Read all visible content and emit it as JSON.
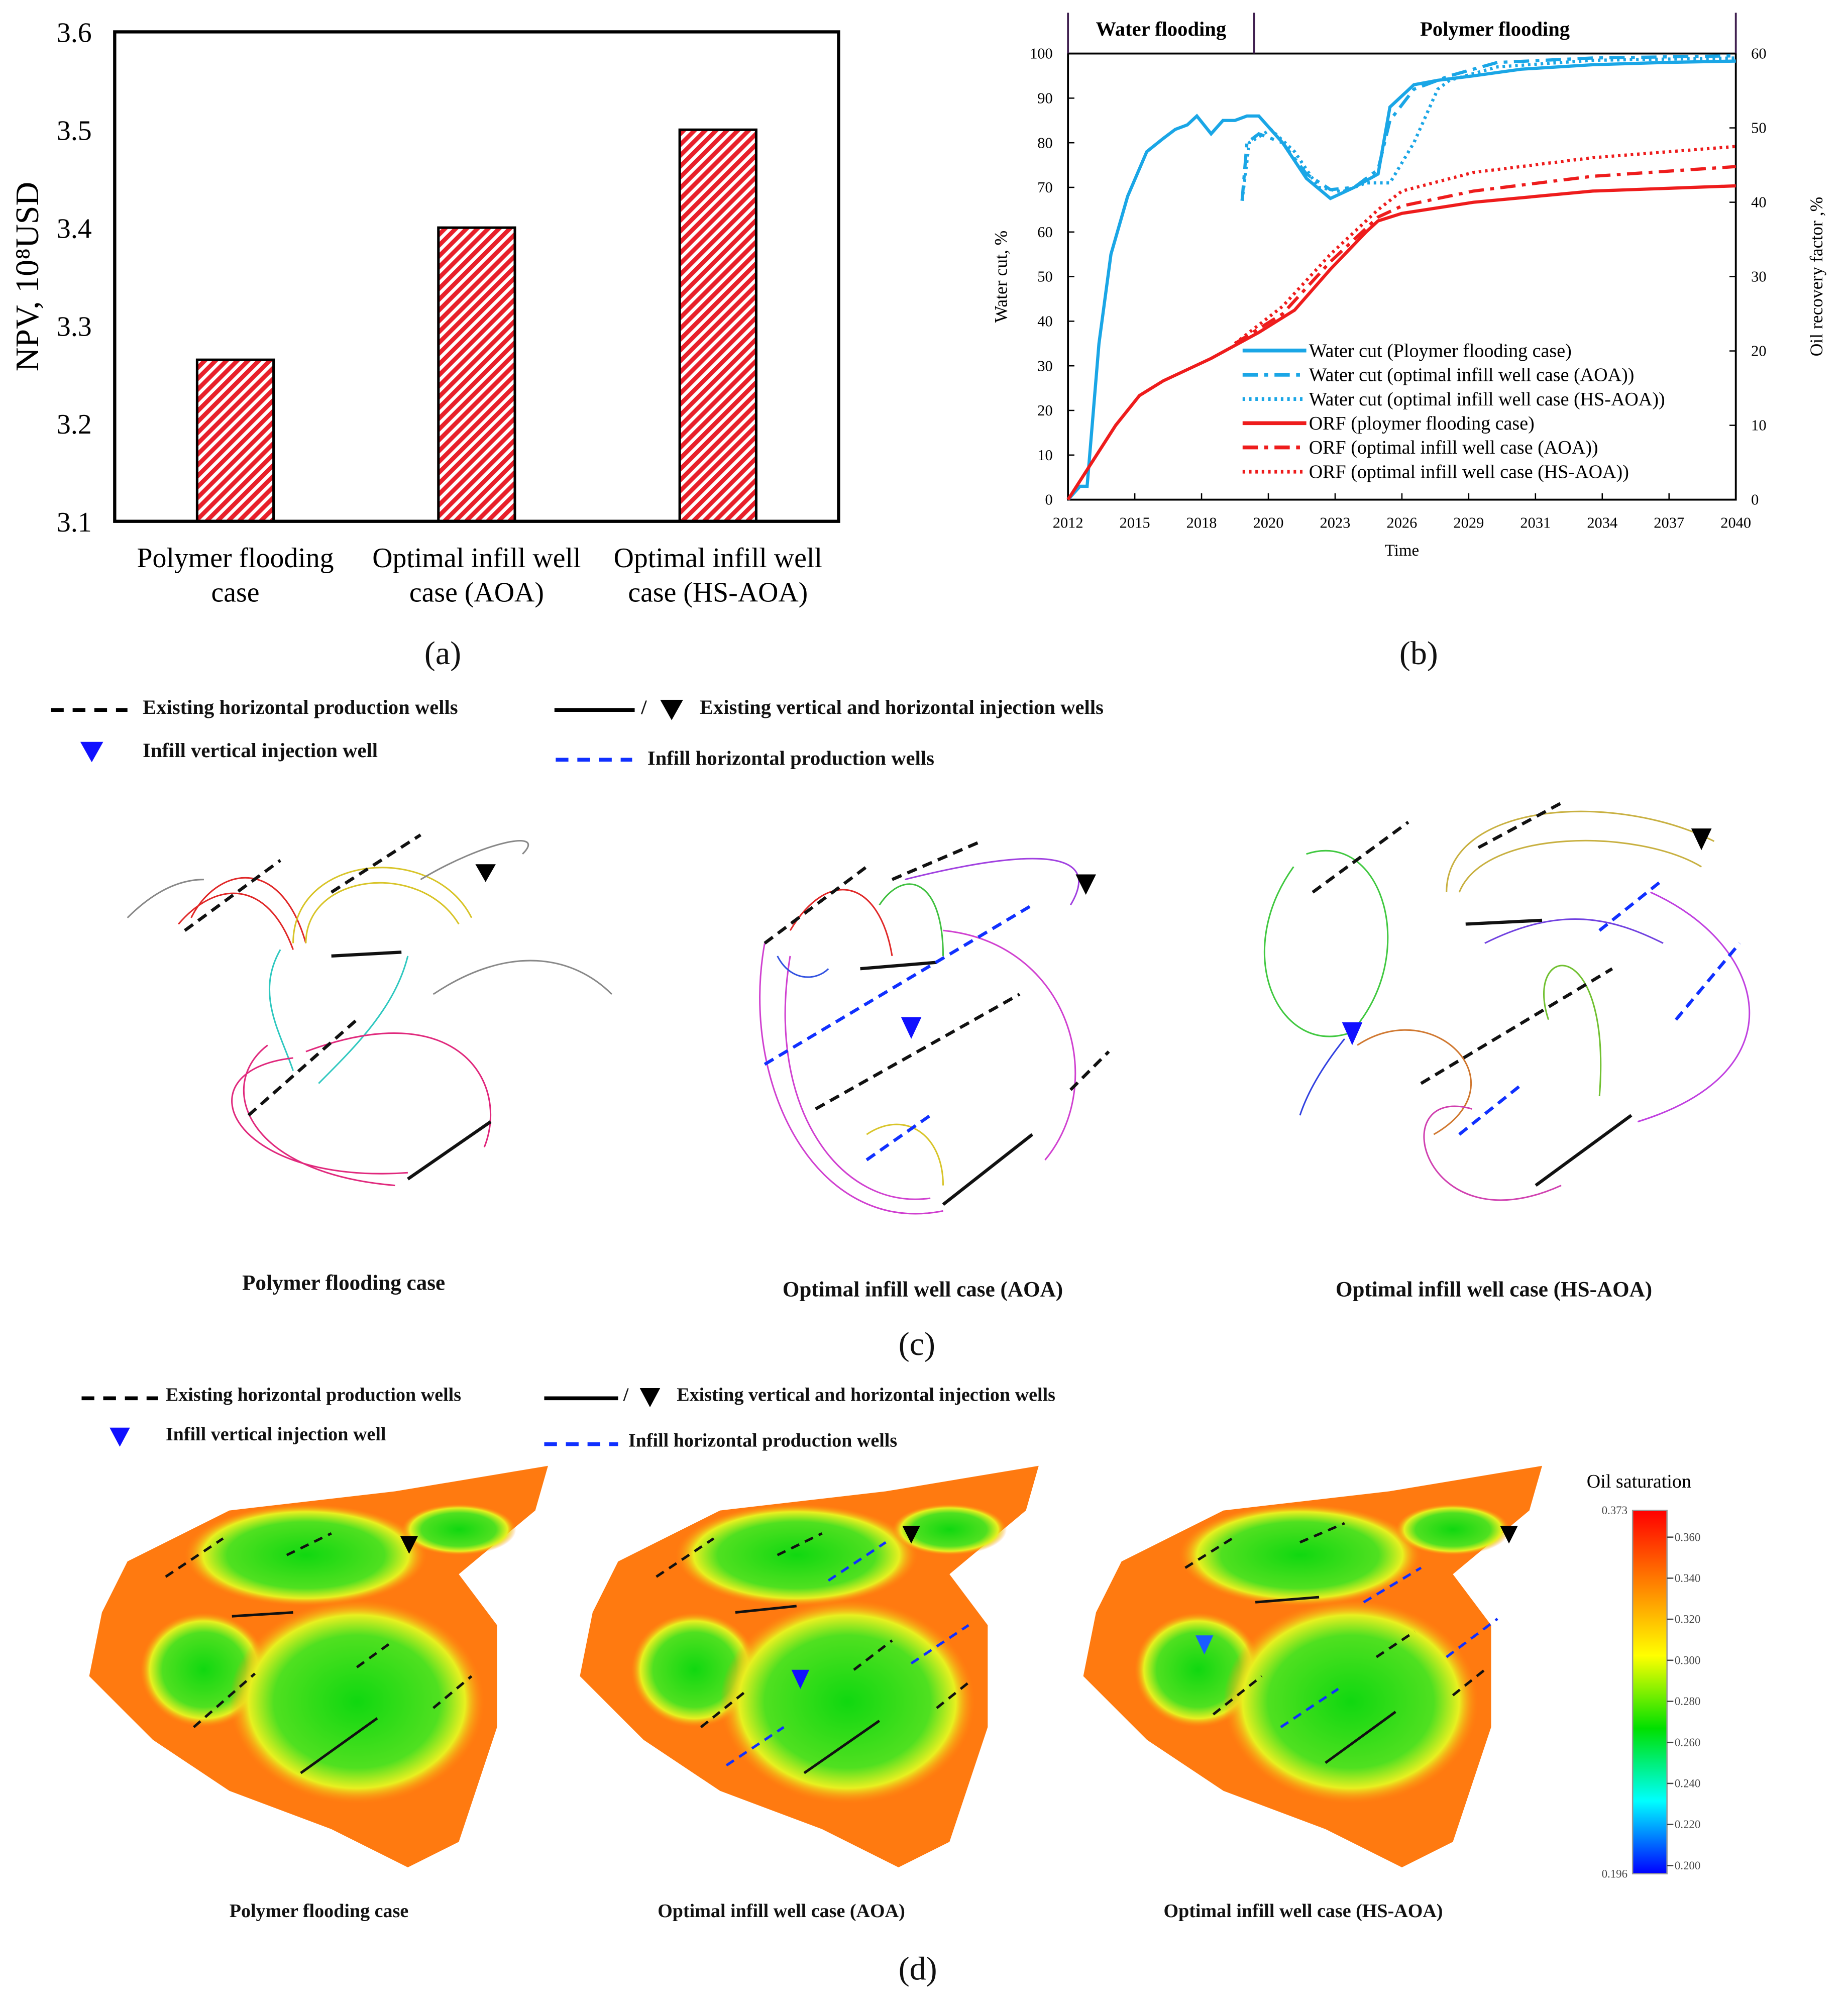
{
  "chart_data": [
    {
      "type": "bar",
      "panel": "a",
      "categories": [
        "Polymer flooding case",
        "Optimal infill well case (AOA)",
        "Optimal infill well case (HS-AOA)"
      ],
      "category_lines": [
        [
          "Polymer flooding",
          "case"
        ],
        [
          "Optimal infill well",
          "case (AOA)"
        ],
        [
          "Optimal infill well",
          "case (HS-AOA)"
        ]
      ],
      "values": [
        3.265,
        3.4,
        3.5
      ],
      "ylabel": "NPV, 10⁸USD",
      "ylim": [
        3.1,
        3.6
      ],
      "yticks": [
        "3.1",
        "3.2",
        "3.3",
        "3.4",
        "3.5",
        "3.6"
      ],
      "bar_color": "#e8202a",
      "pattern": "diagonal hatch"
    },
    {
      "type": "line",
      "panel": "b",
      "xlabel": "Time",
      "ylabel_left": "Water cut, %",
      "ylabel_right": "Oil recovery factor ,%",
      "xlim": [
        2012,
        2040
      ],
      "xticks": [
        "2012",
        "2015",
        "2018",
        "2020",
        "2023",
        "2026",
        "2029",
        "2031",
        "2034",
        "2037",
        "2040"
      ],
      "ylim_left": [
        0,
        100
      ],
      "yticks_left": [
        "0",
        "10",
        "20",
        "30",
        "40",
        "50",
        "60",
        "70",
        "80",
        "90",
        "100"
      ],
      "ylim_right": [
        0,
        60
      ],
      "yticks_right": [
        "0",
        "10",
        "20",
        "30",
        "40",
        "50",
        "60"
      ],
      "phases": [
        {
          "label": "Water flooding",
          "from": 2012,
          "to": 2019.8
        },
        {
          "label": "Polymer flooding",
          "from": 2019.8,
          "to": 2040
        }
      ],
      "legend_position": "bottom-right",
      "series": [
        {
          "name": "Water cut (Ploymer flooding case)",
          "axis": "left",
          "color": "#1aa6e6",
          "style": "solid",
          "x": [
            2012,
            2012.5,
            2012.8,
            2013.3,
            2013.8,
            2014.5,
            2015.3,
            2016,
            2016.5,
            2017,
            2017.4,
            2018,
            2018.5,
            2019,
            2019.5,
            2020,
            2021,
            2022,
            2023,
            2024,
            2025,
            2025.5,
            2026.5,
            2027.5,
            2029,
            2031,
            2034,
            2037,
            2040
          ],
          "y": [
            0,
            3,
            3,
            35,
            55,
            68,
            78,
            81,
            83,
            84,
            86,
            82,
            85,
            85,
            86,
            86,
            80,
            72,
            67.5,
            70,
            73,
            88,
            93,
            94,
            95,
            96.5,
            97.5,
            98,
            98.3
          ]
        },
        {
          "name": "Water cut (optimal infill well case (AOA))",
          "axis": "left",
          "color": "#1aa6e6",
          "style": "dashdot",
          "x": [
            2019.3,
            2019.5,
            2020,
            2021,
            2022,
            2023,
            2024,
            2025,
            2025.5,
            2026.5,
            2028,
            2030,
            2034,
            2040
          ],
          "y": [
            67,
            80,
            82,
            80,
            73,
            69.5,
            70,
            74,
            85,
            92,
            95,
            98,
            99,
            99.5
          ]
        },
        {
          "name": "Water cut (optimal infill well case (HS-AOA))",
          "axis": "left",
          "color": "#1aa6e6",
          "style": "dotted",
          "x": [
            2019.3,
            2019.6,
            2020.5,
            2021.5,
            2022.5,
            2023.5,
            2024.5,
            2025.5,
            2026.5,
            2027.5,
            2028,
            2030,
            2034,
            2040
          ],
          "y": [
            67,
            80,
            83,
            78,
            70,
            69,
            71,
            71,
            80,
            92,
            94,
            97,
            98.5,
            99
          ]
        },
        {
          "name": "ORF (ploymer flooding case)",
          "axis": "right",
          "color": "#ee1c1c",
          "style": "solid",
          "x": [
            2012,
            2013,
            2014,
            2015,
            2016,
            2018,
            2020,
            2021.5,
            2023,
            2024.5,
            2025,
            2026,
            2029,
            2034,
            2040
          ],
          "y": [
            0,
            5,
            10,
            14,
            16,
            19,
            22.5,
            25.5,
            31,
            36,
            37.5,
            38.5,
            40,
            41.5,
            42.2
          ]
        },
        {
          "name": "ORF (optimal infill well case (AOA))",
          "axis": "right",
          "color": "#ee1c1c",
          "style": "dashdot",
          "x": [
            2019,
            2021,
            2023,
            2025,
            2026,
            2029,
            2034,
            2040
          ],
          "y": [
            21,
            25,
            32,
            38,
            39.5,
            41.5,
            43.5,
            44.8
          ]
        },
        {
          "name": "ORF (optimal infill well case (HS-AOA))",
          "axis": "right",
          "color": "#ee1c1c",
          "style": "dotted",
          "x": [
            2019,
            2021,
            2023,
            2025,
            2026,
            2029,
            2034,
            2040
          ],
          "y": [
            21,
            26,
            33,
            39,
            41.5,
            44,
            46,
            47.5
          ]
        }
      ]
    },
    {
      "type": "heatmap",
      "panel": "d",
      "colorbar_title": "Oil saturation",
      "colorbar_min": "0.196",
      "colorbar_max": "0.373",
      "colorbar_ticks": [
        "0.360",
        "0.340",
        "0.320",
        "0.300",
        "0.280",
        "0.260",
        "0.240",
        "0.220",
        "0.200"
      ],
      "colors": [
        "#ff0000",
        "#ff8000",
        "#ffff00",
        "#00e000",
        "#00ffff",
        "#0000ff"
      ]
    }
  ],
  "captions": {
    "a": "(a)",
    "b": "(b)",
    "c": "(c)",
    "d": "(d)"
  },
  "legend": {
    "existing_production": "Existing horizontal production wells",
    "existing_injection_sep": "/",
    "existing_injection": "Existing vertical and horizontal injection wells",
    "infill_injection": "Infill vertical injection well",
    "infill_production": "Infill horizontal production wells"
  },
  "cases": [
    "Polymer flooding case",
    "Optimal infill well case (AOA)",
    "Optimal infill well case (HS-AOA)"
  ]
}
